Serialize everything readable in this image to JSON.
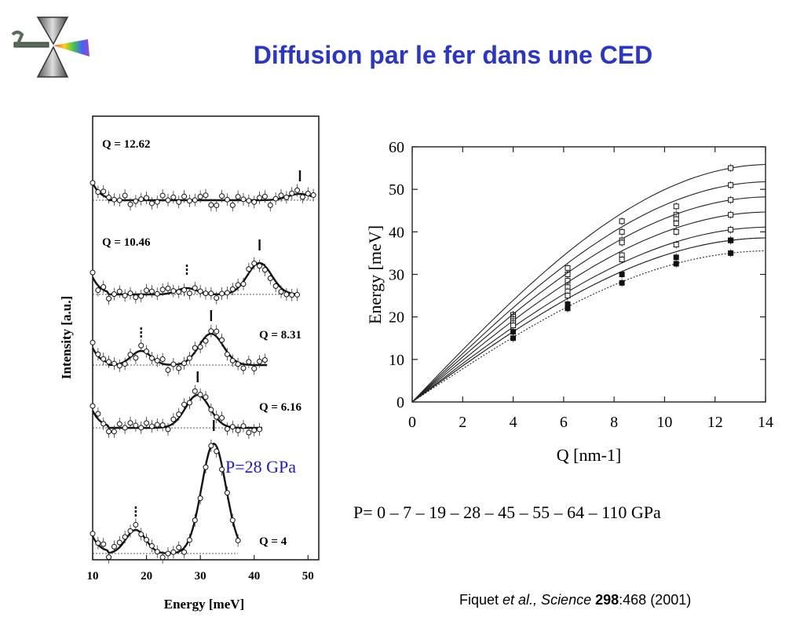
{
  "title": "Diffusion par le fer dans une CED",
  "pressure_note": "P=28 GPa",
  "pressure_list": "P= 0 – 7 – 19 – 28 – 45 – 55 – 64 – 110 GPa",
  "citation": {
    "author": "Fiquet ",
    "etal": "et al., Science ",
    "volume": "298",
    "pages": ":468 (2001)"
  },
  "colors": {
    "title": "#2b35c8",
    "pressure_note": "#1a1ad0"
  },
  "chart_data": [
    {
      "type": "line",
      "xlabel": "Energy [meV]",
      "ylabel": "Intensity [a.u.]",
      "xlim": [
        10,
        52
      ],
      "xticks": [
        "10",
        "20",
        "30",
        "40",
        "50"
      ],
      "stacked_spectra": true,
      "panels": [
        {
          "label": "Q = 12.62",
          "Q": 12.62,
          "peaks_meV": [
            48.5
          ]
        },
        {
          "label": "Q = 10.46",
          "Q": 10.46,
          "peaks_meV": [
            27.5,
            41
          ]
        },
        {
          "label": "Q = 8.31",
          "Q": 8.31,
          "peaks_meV": [
            19,
            32
          ]
        },
        {
          "label": "Q = 6.16",
          "Q": 6.16,
          "peaks_meV": [
            29.5
          ]
        },
        {
          "label": "Q = 4",
          "Q": 4,
          "peaks_meV": [
            18,
            32.5
          ]
        }
      ]
    },
    {
      "type": "line",
      "xlabel": "Q [nm-1]",
      "ylabel": "Energy [meV]",
      "xlim": [
        0,
        14
      ],
      "ylim": [
        0,
        60
      ],
      "xticks": [
        "0",
        "2",
        "4",
        "6",
        "8",
        "10",
        "12",
        "14"
      ],
      "yticks": [
        "0",
        "10",
        "20",
        "30",
        "40",
        "50",
        "60"
      ],
      "x": [
        0,
        4,
        6.16,
        8.31,
        10.46,
        12.62
      ],
      "series": [
        {
          "values": [
            0,
            20.5,
            31.5,
            42.5,
            46,
            55
          ],
          "style": "solid",
          "marker": "open-square"
        },
        {
          "values": [
            0,
            20,
            30,
            40,
            44,
            51
          ],
          "style": "solid",
          "marker": "open-square"
        },
        {
          "values": [
            0,
            19.5,
            28.5,
            38,
            43,
            47.5
          ],
          "style": "solid",
          "marker": "open-square"
        },
        {
          "values": [
            0,
            19,
            27,
            37.5,
            42,
            44
          ],
          "style": "solid",
          "marker": "open-square"
        },
        {
          "values": [
            0,
            18.5,
            26,
            34.5,
            40,
            40.5
          ],
          "style": "solid",
          "marker": "open-square"
        },
        {
          "values": [
            0,
            18,
            25,
            33.5,
            37,
            38
          ],
          "style": "solid",
          "marker": "open-square"
        },
        {
          "values": [
            0,
            16.5,
            23,
            30,
            34,
            38
          ],
          "style": "dotted",
          "marker": "filled-square"
        },
        {
          "values": [
            0,
            15,
            22,
            28,
            32.5,
            35
          ],
          "style": "dotted",
          "marker": "filled-square"
        }
      ]
    }
  ]
}
